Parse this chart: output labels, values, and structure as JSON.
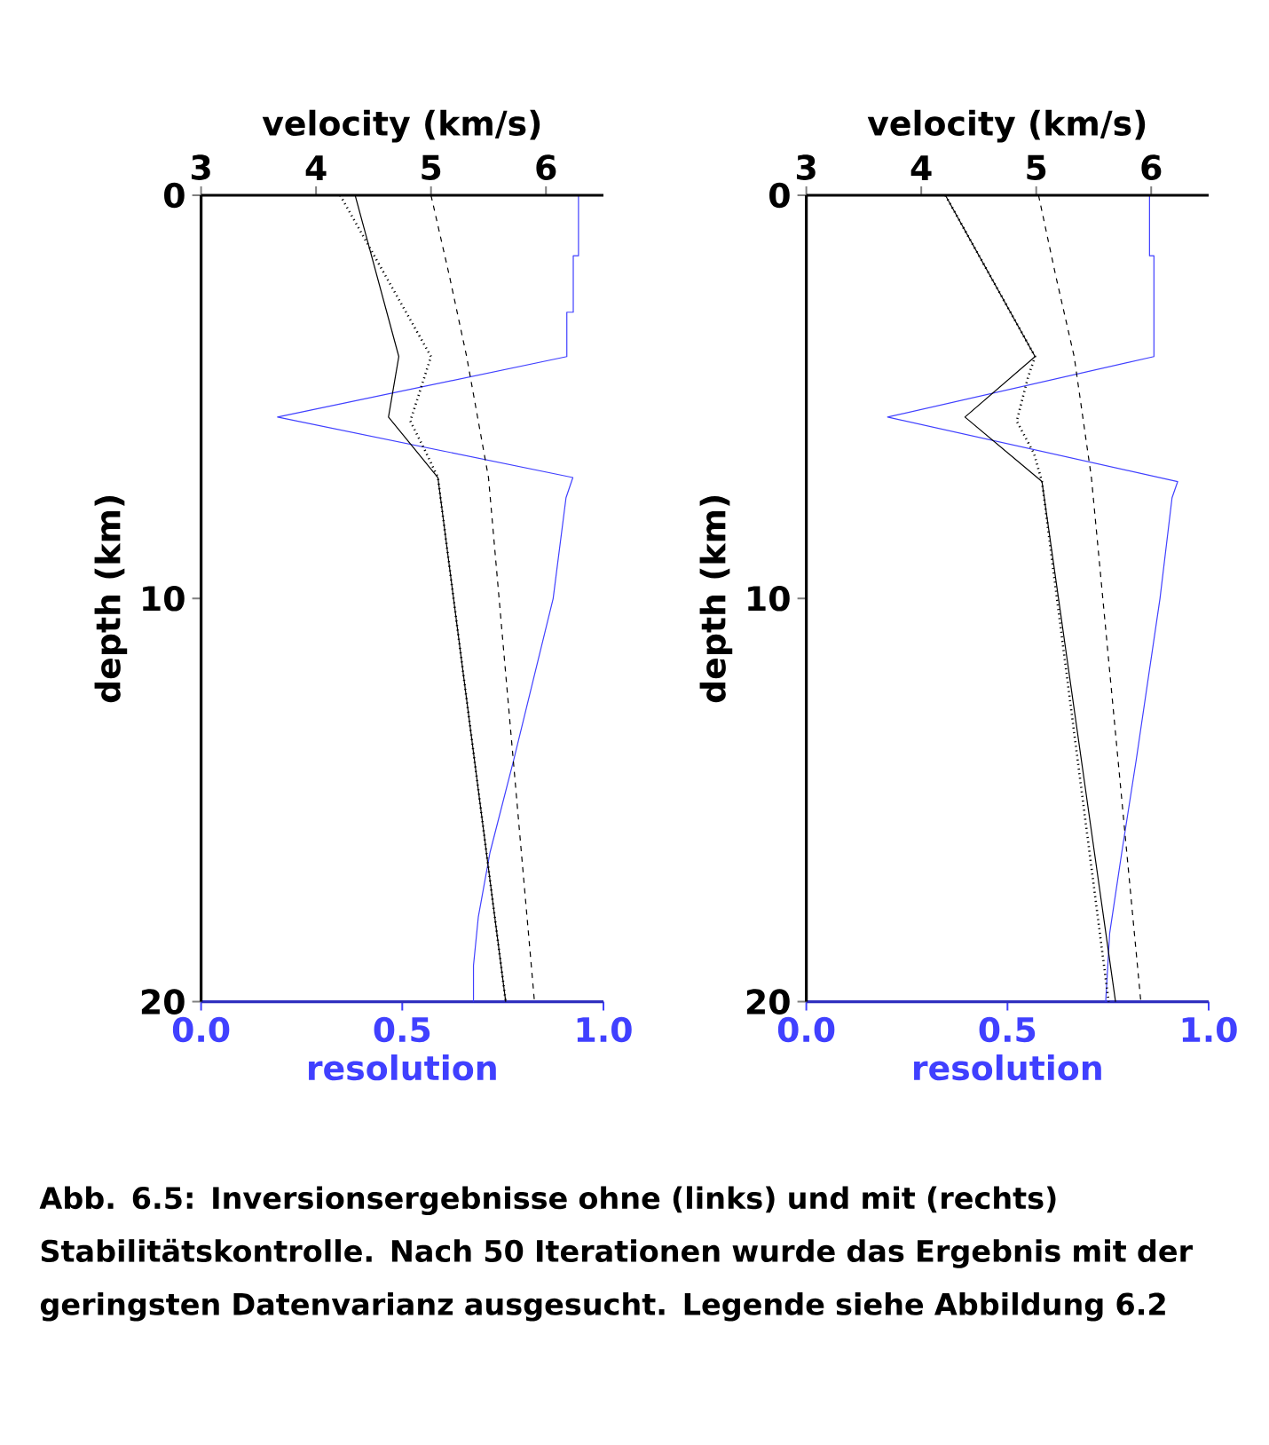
{
  "chart_data": [
    {
      "type": "line",
      "x2label": "velocity (km/s)",
      "xlabel": "resolution",
      "ylabel": "depth (km)",
      "x2lim": [
        3,
        6.5
      ],
      "x2ticks": [
        3,
        4,
        5,
        6
      ],
      "xlim": [
        0,
        1
      ],
      "xticks": [
        {
          "value": 0,
          "label": "0.0"
        },
        {
          "value": 0.5,
          "label": "0.5"
        },
        {
          "value": 1,
          "label": "1.0"
        }
      ],
      "ylim": [
        20,
        0
      ],
      "yticks": [
        0,
        10,
        20
      ],
      "series": [
        {
          "axis": "x2",
          "color": "#000000",
          "line_style": "solid",
          "x": [
            4.34,
            4.72,
            4.63,
            5.06,
            5.65
          ],
          "values": [
            0,
            4.0,
            5.5,
            7.0,
            20
          ]
        },
        {
          "axis": "x2",
          "color": "#000000",
          "line_style": "dotted",
          "x": [
            4.21,
            5.0,
            4.82,
            4.96,
            5.06,
            5.65
          ],
          "values": [
            0,
            4.0,
            5.6,
            6.4,
            7.0,
            20
          ]
        },
        {
          "axis": "x2",
          "color": "#000000",
          "line_style": "dashed",
          "x": [
            5.0,
            5.16,
            5.31,
            5.5,
            5.9
          ],
          "values": [
            0,
            2,
            4,
            7,
            20
          ]
        },
        {
          "color": "#4040ff",
          "line_style": "solid",
          "x": [
            0.938,
            0.938,
            0.925,
            0.925,
            0.909,
            0.909,
            0.19,
            0.924,
            0.907,
            0.875,
            0.777,
            0.718,
            0.689,
            0.677,
            0.677
          ],
          "values": [
            0,
            1.5,
            1.5,
            2.9,
            2.9,
            4.0,
            5.5,
            7.0,
            7.5,
            10,
            14,
            16.3,
            17.9,
            19.1,
            20
          ]
        }
      ],
      "annotations": [
        "Abb. 6.5: Inversionsergebnisse ohne (links) und mit (rechts) Stabilitätskontrolle. Nach 50 Iterationen wurde das Ergebnis mit der geringsten Datenvarianz ausgesucht. Legende siehe Abbildung 6.2"
      ]
    },
    {
      "type": "line",
      "x2label": "velocity (km/s)",
      "xlabel": "resolution",
      "ylabel": "depth (km)",
      "x2lim": [
        3,
        6.5
      ],
      "x2ticks": [
        3,
        4,
        5,
        6
      ],
      "xlim": [
        0,
        1
      ],
      "xticks": [
        {
          "value": 0,
          "label": "0.0"
        },
        {
          "value": 0.5,
          "label": "0.5"
        },
        {
          "value": 1,
          "label": "1.0"
        }
      ],
      "ylim": [
        20,
        0
      ],
      "yticks": [
        0,
        10,
        20
      ],
      "series": [
        {
          "axis": "x2",
          "color": "#000000",
          "line_style": "solid",
          "x": [
            4.21,
            4.99,
            4.38,
            5.05,
            5.69
          ],
          "values": [
            0,
            4.0,
            5.5,
            7.1,
            20
          ]
        },
        {
          "axis": "x2",
          "color": "#000000",
          "line_style": "dotted",
          "x": [
            4.21,
            4.99,
            4.93,
            4.83,
            4.98,
            5.05,
            5.63
          ],
          "values": [
            0,
            4.0,
            4.5,
            5.6,
            6.4,
            7.1,
            20
          ]
        },
        {
          "axis": "x2",
          "color": "#000000",
          "line_style": "dashed",
          "x": [
            5.02,
            5.17,
            5.33,
            5.48,
            5.91
          ],
          "values": [
            0,
            2,
            4,
            7,
            20
          ]
        },
        {
          "color": "#4040ff",
          "line_style": "solid",
          "x": [
            0.853,
            0.853,
            0.864,
            0.864,
            0.202,
            0.923,
            0.909,
            0.879,
            0.82,
            0.784,
            0.754,
            0.744
          ],
          "values": [
            0,
            1.5,
            1.5,
            4.0,
            5.5,
            7.1,
            7.5,
            10,
            14,
            16.3,
            18.3,
            20
          ]
        }
      ]
    }
  ]
}
